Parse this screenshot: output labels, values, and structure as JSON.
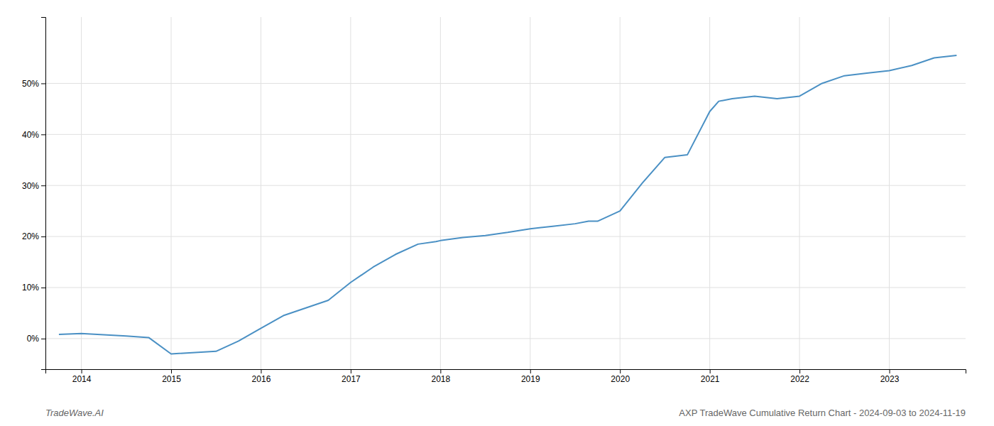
{
  "chart_data": {
    "type": "line",
    "x": [
      2013.75,
      2014.0,
      2014.5,
      2014.75,
      2015.0,
      2015.5,
      2015.75,
      2016.0,
      2016.25,
      2016.5,
      2016.75,
      2017.0,
      2017.25,
      2017.5,
      2017.75,
      2017.95,
      2018.0,
      2018.25,
      2018.5,
      2018.75,
      2019.0,
      2019.25,
      2019.5,
      2019.65,
      2019.75,
      2020.0,
      2020.25,
      2020.5,
      2020.75,
      2021.0,
      2021.1,
      2021.25,
      2021.5,
      2021.75,
      2022.0,
      2022.25,
      2022.5,
      2022.75,
      2023.0,
      2023.25,
      2023.5,
      2023.75
    ],
    "values": [
      0.8,
      1.0,
      0.5,
      0.2,
      -3.0,
      -2.5,
      -0.5,
      2.0,
      4.5,
      6.0,
      7.5,
      11.0,
      14.0,
      16.5,
      18.5,
      19.0,
      19.2,
      19.8,
      20.2,
      20.8,
      21.5,
      22.0,
      22.5,
      23.0,
      23.0,
      25.0,
      30.5,
      35.5,
      36.0,
      44.5,
      46.5,
      47.0,
      47.5,
      47.0,
      47.5,
      50.0,
      51.5,
      52.0,
      52.5,
      53.5,
      55.0,
      55.5
    ],
    "color": "#4a90c4",
    "xlim": [
      2013.6,
      2023.85
    ],
    "ylim": [
      -6,
      63
    ],
    "xticks": [
      2014,
      2015,
      2016,
      2017,
      2018,
      2019,
      2020,
      2021,
      2022,
      2023
    ],
    "yticks": [
      {
        "value": 0,
        "label": "0%"
      },
      {
        "value": 10,
        "label": "10%"
      },
      {
        "value": 20,
        "label": "20%"
      },
      {
        "value": 30,
        "label": "30%"
      },
      {
        "value": 40,
        "label": "40%"
      },
      {
        "value": 50,
        "label": "50%"
      }
    ],
    "grid": true,
    "annotations": [
      "TradeWave.AI",
      "AXP TradeWave Cumulative Return Chart - 2024-09-03 to 2024-11-19"
    ]
  }
}
